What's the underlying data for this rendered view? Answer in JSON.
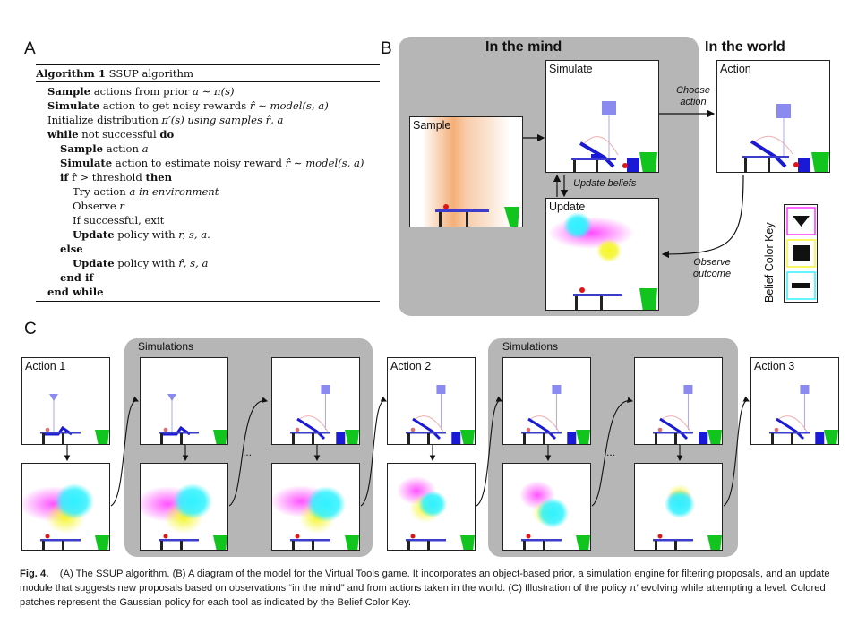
{
  "panels": {
    "a": "A",
    "b": "B",
    "c": "C"
  },
  "algorithm": {
    "title_bold": "Algorithm 1",
    "title_rest": " SSUP algorithm",
    "lines": [
      {
        "indent": 0,
        "bold": "Sample",
        "rest": " actions from prior ",
        "math": "a ∼ π(s)"
      },
      {
        "indent": 0,
        "bold": "Simulate",
        "rest": " action to get noisy rewards ",
        "math": "r̂ ∼ model(s, a)"
      },
      {
        "indent": 0,
        "bold": "",
        "rest": "Initialize distribution ",
        "math": "π′(s) using samples r̂, a"
      },
      {
        "indent": 0,
        "bold": "while",
        "rest": " not successful ",
        "bold2": "do"
      },
      {
        "indent": 1,
        "bold": "Sample",
        "rest": " action ",
        "math": "a"
      },
      {
        "indent": 1,
        "bold": "Simulate",
        "rest": " action to estimate noisy reward ",
        "math": "r̂ ∼ model(s, a)"
      },
      {
        "indent": 1,
        "bold": "if",
        "rest": " r̂ > threshold ",
        "bold2": "then"
      },
      {
        "indent": 2,
        "bold": "",
        "rest": "Try action ",
        "math": "a in environment"
      },
      {
        "indent": 2,
        "bold": "",
        "rest": "Observe ",
        "math": "r"
      },
      {
        "indent": 2,
        "bold": "",
        "rest": "If successful, exit"
      },
      {
        "indent": 2,
        "bold": "Update",
        "rest": " policy with ",
        "math": "r, s, a."
      },
      {
        "indent": 1,
        "bold": "else",
        "rest": ""
      },
      {
        "indent": 2,
        "bold": "Update",
        "rest": " policy with ",
        "math": "r̂, s, a"
      },
      {
        "indent": 1,
        "bold": "end if",
        "rest": ""
      },
      {
        "indent": 0,
        "bold": "end while",
        "rest": ""
      }
    ]
  },
  "diagram_b": {
    "in_mind": "In the mind",
    "in_world": "In the world",
    "sample": "Sample",
    "simulate": "Simulate",
    "update": "Update",
    "action": "Action",
    "choose_action": "Choose action",
    "update_beliefs": "Update beliefs",
    "observe_outcome": "Observe outcome",
    "belief_key_title": "Belief Color Key"
  },
  "diagram_c": {
    "action_1": "Action 1",
    "action_2": "Action 2",
    "action_3": "Action 3",
    "simulations_1": "Simulations",
    "simulations_2": "Simulations",
    "ellipsis": "..."
  },
  "caption": {
    "fig": "Fig. 4.",
    "text": "(A) The SSUP algorithm. (B) A diagram of the model for the Virtual Tools game. It incorporates an object-based prior, a simulation engine for filtering proposals, and an update module that suggests new proposals based on observations “in the mind” and from actions taken in the world. (C) Illustration of the policy π′ evolving while attempting a level. Colored patches represent the Gaussian policy for each tool as indicated by the Belief Color Key."
  },
  "colors": {
    "gray_panel": "#b6b6b6",
    "blue": "#1a1ad6",
    "red": "#e01515",
    "green": "#12c41e",
    "magenta": "#ff35ff",
    "cyan": "#2ff2ff",
    "yellow": "#f5f52a",
    "orange": "#ef8d3f"
  }
}
